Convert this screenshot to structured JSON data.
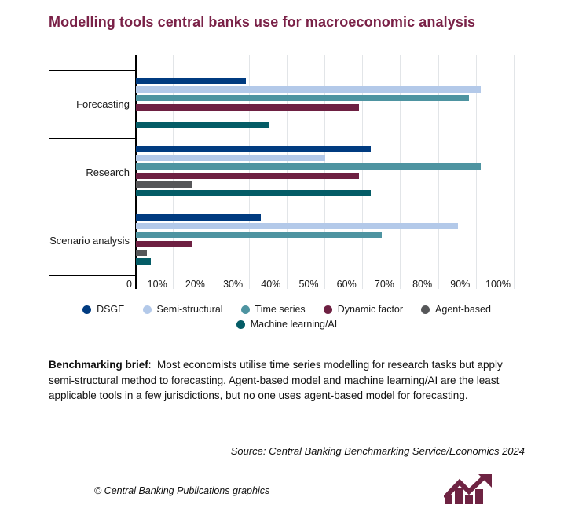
{
  "title": "Modelling tools central banks use for macroeconomic analysis",
  "chart_data": {
    "type": "bar",
    "orientation": "horizontal",
    "title": "Modelling tools central banks use for macroeconomic analysis",
    "categories": [
      "Forecasting",
      "Research",
      "Scenario analysis"
    ],
    "series": [
      {
        "name": "DSGE",
        "color": "#003b80",
        "values": [
          29,
          62,
          33
        ]
      },
      {
        "name": "Semi-structural",
        "color": "#b3c9e9",
        "values": [
          91,
          50,
          85
        ]
      },
      {
        "name": "Time series",
        "color": "#4e94a1",
        "values": [
          88,
          91,
          65
        ]
      },
      {
        "name": "Dynamic factor",
        "color": "#6e2042",
        "values": [
          59,
          59,
          15
        ]
      },
      {
        "name": "Agent-based",
        "color": "#565759",
        "values": [
          0,
          15,
          3
        ]
      },
      {
        "name": "Machine learning/AI",
        "color": "#045c66",
        "values": [
          35,
          62,
          4
        ]
      }
    ],
    "x_tick_labels": [
      "0",
      "10%",
      "20%",
      "30%",
      "40%",
      "50%",
      "60%",
      "70%",
      "80%",
      "90%",
      "100%"
    ],
    "xlim": [
      0,
      100
    ],
    "grid": true,
    "legend_position": "bottom-center"
  },
  "brief": {
    "label": "Benchmarking brief",
    "text": ":  Most economists utilise time series modelling for research tasks but apply semi-structural method to forecasting. Agent-based model and machine learning/AI are the least applicable tools in a few jurisdictions, but no one uses agent-based model for forecasting."
  },
  "source": "Source: Central Banking Benchmarking Service/Economics 2024",
  "credit": "© Central Banking Publications graphics",
  "icons": {
    "logo": "trend-arrow-over-bars"
  },
  "colors": {
    "title": "#7a2147",
    "logo": "#6e2342",
    "axis": "#000000",
    "grid": "#e2e5e8",
    "text": "#1a1a1a"
  }
}
